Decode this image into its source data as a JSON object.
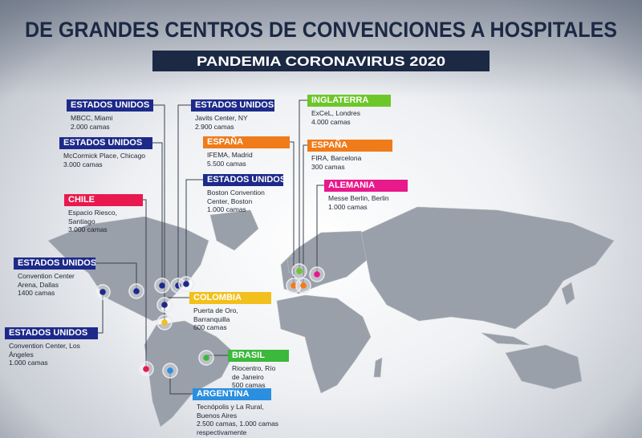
{
  "header": {
    "title": "DE GRANDES CENTROS DE CONVENCIONES A HOSPITALES",
    "subtitle": "PANDEMIA CORONAVIRUS 2020"
  },
  "callouts": [
    {
      "country": "ESTADOS UNIDOS",
      "venue": "MBCC, Miami",
      "beds": "2.000 camas"
    },
    {
      "country": "ESTADOS UNIDOS",
      "venue": "Javits Center, NY",
      "beds": "2.900 camas"
    },
    {
      "country": "INGLATERRA",
      "venue": "ExCeL, Londres",
      "beds": "4.000 camas"
    },
    {
      "country": "ESTADOS UNIDOS",
      "venue": "McCormick Place, Chicago",
      "beds": "3.000 camas"
    },
    {
      "country": "ESPAÑA",
      "venue": "IFEMA, Madrid",
      "beds": "5.500 camas"
    },
    {
      "country": "ESPAÑA",
      "venue": "FIRA, Barcelona",
      "beds": "300 camas"
    },
    {
      "country": "ESTADOS UNIDOS",
      "venue": "Boston Convention Center, Boston",
      "beds": "1.000 camas"
    },
    {
      "country": "ALEMANIA",
      "venue": "Messe Berlin, Berlin",
      "beds": "1.000 camas"
    },
    {
      "country": "CHILE",
      "venue": "Espacio Riesco, Santiago",
      "beds": "3.000 camas"
    },
    {
      "country": "ESTADOS UNIDOS",
      "venue": "Convention Center Arena, Dallas",
      "beds": "1400 camas"
    },
    {
      "country": "COLOMBIA",
      "venue": "Puerta de Oro, Barranquilla",
      "beds": "600 camas"
    },
    {
      "country": "ESTADOS UNIDOS",
      "venue": "Convention Center, Los Ángeles",
      "beds": "1.000 camas"
    },
    {
      "country": "BRASIL",
      "venue": "Riocentro, Río de Janeiro",
      "beds": "500 camas"
    },
    {
      "country": "ARGENTINA",
      "venue": "Tecnópolis y La Rural, Buenos Aires",
      "beds": "2.500 camas, 1.000 camas respectivamente"
    }
  ]
}
